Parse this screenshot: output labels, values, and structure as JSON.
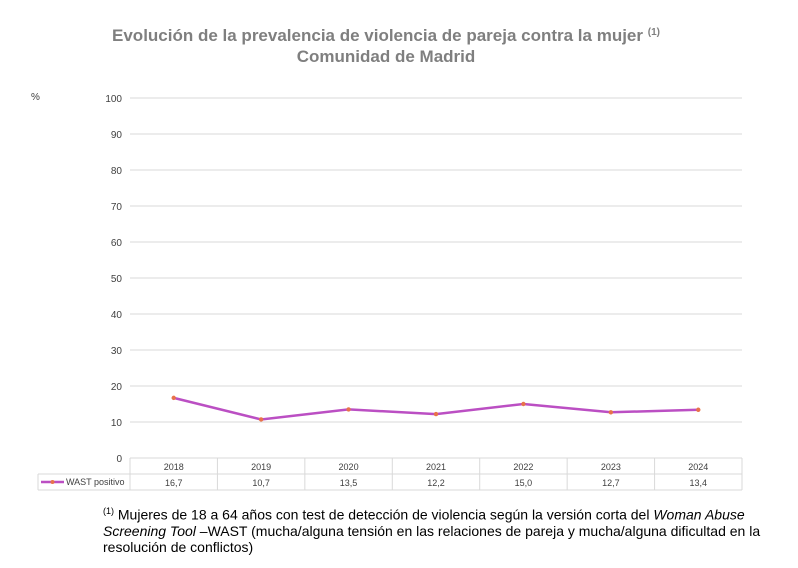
{
  "chart_data": {
    "type": "line",
    "title": "Evolución de la prevalencia de violencia de pareja contra la mujer",
    "title_note": "(1)",
    "subtitle": "Comunidad de Madrid",
    "ylabel": "%",
    "ylim": [
      0,
      100
    ],
    "yticks": [
      0,
      10,
      20,
      30,
      40,
      50,
      60,
      70,
      80,
      90,
      100
    ],
    "grid": true,
    "categories": [
      "2018",
      "2019",
      "2020",
      "2021",
      "2022",
      "2023",
      "2024"
    ],
    "series": [
      {
        "name": "WAST positivo",
        "values": [
          16.7,
          10.7,
          13.5,
          12.2,
          15.0,
          12.7,
          13.4
        ],
        "labels": [
          "16,7",
          "10,7",
          "13,5",
          "12,2",
          "15,0",
          "12,7",
          "13,4"
        ],
        "color": "#bb4fc3",
        "marker_color": "#e8734a"
      }
    ],
    "legend": "data-table"
  },
  "footnote": {
    "mark": "(1)",
    "text1": " Mujeres de 18 a 64 años con test de detección de violencia según la versión corta del ",
    "italic": "Woman Abuse Screening Tool",
    "text2": " –WAST (mucha/alguna tensión en las relaciones de pareja y mucha/alguna dificultad en la resolución de conflictos)"
  }
}
